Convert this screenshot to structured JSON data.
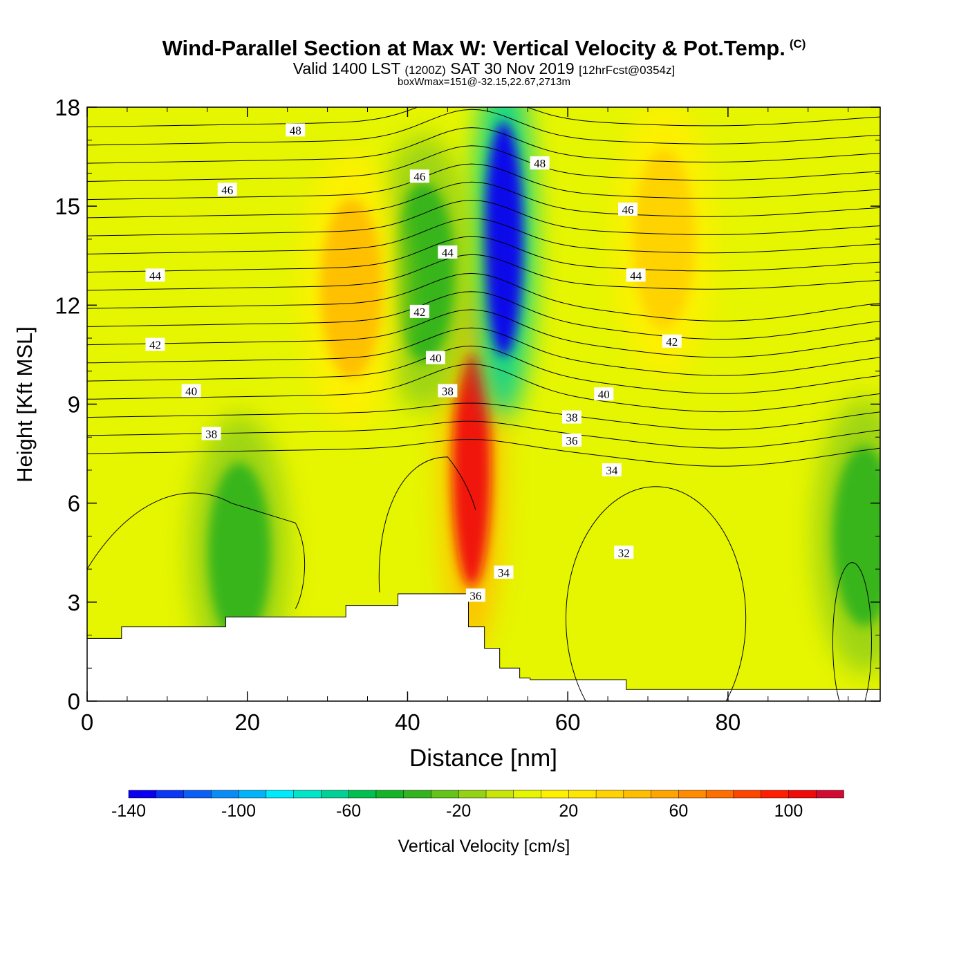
{
  "header": {
    "title": "Wind-Parallel Section at Max W: Vertical Velocity & Pot.Temp.",
    "copyright": "(C)",
    "subtitle_main": "Valid 1400 LST",
    "subtitle_utc": "(1200Z)",
    "subtitle_date": "SAT 30 Nov 2019",
    "subtitle_fcst": "[12hrFcst@0354z]",
    "note": "boxWmax=151@-32.15,22.67,2713m"
  },
  "chart_data": {
    "type": "heatmap",
    "title": "Wind-Parallel Section at Max W: Vertical Velocity & Pot.Temp.",
    "xlabel": "Distance [nm]",
    "ylabel": "Height [Kft MSL]",
    "xlim": [
      0,
      99
    ],
    "ylim": [
      0,
      18
    ],
    "xticks": [
      0,
      20,
      40,
      60,
      80
    ],
    "yticks": [
      0,
      3,
      6,
      9,
      12,
      15,
      18
    ],
    "colorbar": {
      "label": "Vertical Velocity [cm/s]",
      "ticks": [
        -140,
        -100,
        -60,
        -20,
        20,
        60,
        100
      ],
      "min": -140,
      "max": 120,
      "colors": [
        "#0a00f0",
        "#0a37f5",
        "#0a5ff7",
        "#0a8cf7",
        "#00b4fa",
        "#00ebfa",
        "#00e6c8",
        "#00d296",
        "#00c050",
        "#14b428",
        "#32b41e",
        "#64c319",
        "#96d214",
        "#c8e60a",
        "#e6f500",
        "#fff000",
        "#ffe600",
        "#ffd200",
        "#ffbe00",
        "#ffa500",
        "#ff8c00",
        "#ff6e00",
        "#ff4600",
        "#ff1e00",
        "#f00a0a",
        "#d20a32"
      ]
    },
    "w_features": [
      {
        "x": 48,
        "z": 7,
        "w": 105
      },
      {
        "x": 52,
        "z": 14,
        "w": -140
      },
      {
        "x": 42,
        "z": 13,
        "w": -40
      },
      {
        "x": 33,
        "z": 12.5,
        "w": 40
      },
      {
        "x": 72,
        "z": 14,
        "w": 30
      },
      {
        "x": 19,
        "z": 4.5,
        "w": -40
      },
      {
        "x": 97,
        "z": 5,
        "w": -35
      }
    ],
    "terrain_x": [
      0,
      4.3,
      4.3,
      17.3,
      17.3,
      32.3,
      32.3,
      38.8,
      38.8,
      47.6,
      47.6,
      49.6,
      49.6,
      51.5,
      51.5,
      54,
      54,
      55.3,
      55.3,
      67.3,
      67.3,
      99
    ],
    "terrain_z": [
      1.9,
      1.9,
      2.25,
      2.25,
      2.55,
      2.55,
      2.9,
      2.9,
      3.25,
      3.25,
      2.25,
      2.25,
      1.6,
      1.6,
      1.0,
      1.0,
      0.7,
      0.7,
      0.65,
      0.65,
      0.35,
      0.35
    ],
    "theta_contours": {
      "labeled": [
        {
          "value": "48",
          "x": 26,
          "z": 17.3
        },
        {
          "value": "48",
          "x": 56.5,
          "z": 16.3
        },
        {
          "value": "46",
          "x": 17.5,
          "z": 15.5
        },
        {
          "value": "46",
          "x": 41.5,
          "z": 15.9
        },
        {
          "value": "46",
          "x": 67.5,
          "z": 14.9
        },
        {
          "value": "44",
          "x": 8.5,
          "z": 12.9
        },
        {
          "value": "44",
          "x": 45,
          "z": 13.6
        },
        {
          "value": "44",
          "x": 68.5,
          "z": 12.9
        },
        {
          "value": "42",
          "x": 8.5,
          "z": 10.8
        },
        {
          "value": "42",
          "x": 41.5,
          "z": 11.8
        },
        {
          "value": "42",
          "x": 73,
          "z": 10.9
        },
        {
          "value": "40",
          "x": 13,
          "z": 9.4
        },
        {
          "value": "40",
          "x": 43.5,
          "z": 10.4
        },
        {
          "value": "40",
          "x": 64.5,
          "z": 9.3
        },
        {
          "value": "38",
          "x": 15.5,
          "z": 8.1
        },
        {
          "value": "38",
          "x": 45,
          "z": 9.4
        },
        {
          "value": "38",
          "x": 60.5,
          "z": 8.6
        },
        {
          "value": "36",
          "x": 60.5,
          "z": 7.9
        },
        {
          "value": "36",
          "x": 48.5,
          "z": 3.2
        },
        {
          "value": "34",
          "x": 65.5,
          "z": 7.0
        },
        {
          "value": "34",
          "x": 52,
          "z": 3.9
        },
        {
          "value": "32",
          "x": 67,
          "z": 4.5
        }
      ]
    }
  }
}
